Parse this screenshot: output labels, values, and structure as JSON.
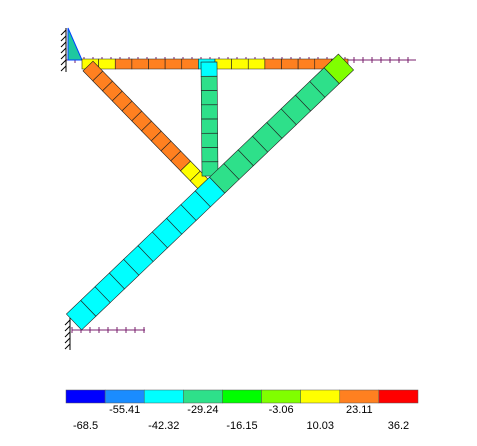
{
  "colorbar": {
    "colors": [
      "#0000ff",
      "#1a8cff",
      "#00ffff",
      "#2ee08a",
      "#00ff00",
      "#80ff00",
      "#ffff00",
      "#ff8020",
      "#ff0000"
    ],
    "labels": [
      "-68.5",
      "-55.41",
      "-42.32",
      "-29.24",
      "-16.15",
      "-3.06",
      "10.03",
      "23.11",
      "36.2"
    ]
  }
}
